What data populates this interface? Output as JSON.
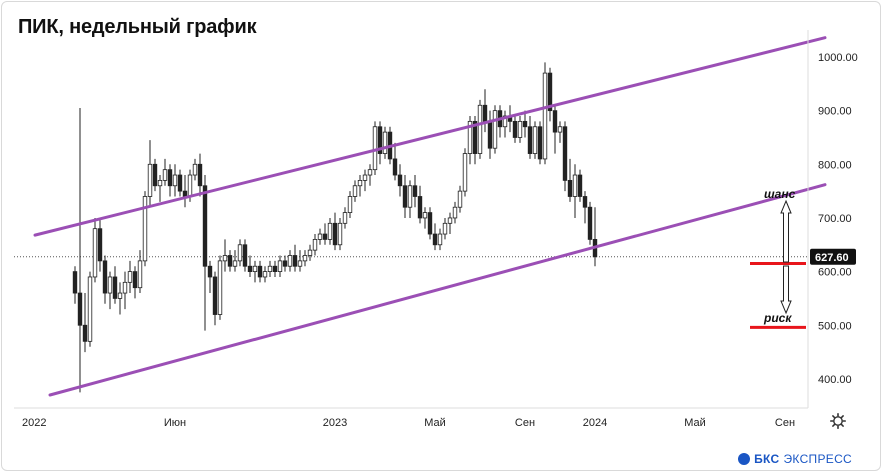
{
  "title": "ПИК, недельный график",
  "brand": {
    "name_bold": "БКС",
    "name": "ЭКСПРЕСС"
  },
  "icons": {
    "settings": "gear-icon",
    "brand": "bcs-logo-icon"
  },
  "colors": {
    "channel": "#9b4fb5",
    "candle": "#222222",
    "level": "#e8151b",
    "price_label_bg": "#111111"
  },
  "chart_data": {
    "type": "candlestick",
    "ylim": [
      350,
      1030
    ],
    "yticks": [
      "400.00",
      "500.00",
      "600.00",
      "700.00",
      "800.00",
      "900.00",
      "1000.00"
    ],
    "xticks": [
      "2022",
      "Июн",
      "2023",
      "Май",
      "Сен",
      "2024",
      "Май",
      "Сен"
    ],
    "xtick_weeks": [
      0,
      20,
      52,
      72,
      90,
      104,
      124,
      142
    ],
    "current_price": "627.60",
    "current_price_value": 627.6,
    "chance_label": "шанс",
    "risk_label": "риск",
    "levels": [
      615,
      496
    ],
    "channel_upper": [
      [
        -8,
        668
      ],
      [
        150,
        1036
      ]
    ],
    "channel_lower": [
      [
        -5,
        370
      ],
      [
        150,
        762
      ]
    ],
    "candles_ohlc": [
      [
        600,
        610,
        540,
        560
      ],
      [
        560,
        905,
        375,
        500
      ],
      [
        500,
        560,
        450,
        470
      ],
      [
        470,
        600,
        460,
        590
      ],
      [
        590,
        700,
        580,
        680
      ],
      [
        680,
        700,
        600,
        620
      ],
      [
        620,
        630,
        540,
        560
      ],
      [
        560,
        600,
        530,
        590
      ],
      [
        590,
        610,
        540,
        550
      ],
      [
        550,
        580,
        520,
        560
      ],
      [
        560,
        600,
        530,
        580
      ],
      [
        580,
        620,
        560,
        600
      ],
      [
        600,
        610,
        550,
        570
      ],
      [
        570,
        640,
        560,
        620
      ],
      [
        620,
        750,
        610,
        740
      ],
      [
        740,
        845,
        720,
        800
      ],
      [
        800,
        810,
        750,
        760
      ],
      [
        760,
        780,
        730,
        770
      ],
      [
        770,
        810,
        760,
        790
      ],
      [
        790,
        800,
        740,
        760
      ],
      [
        760,
        800,
        740,
        780
      ],
      [
        780,
        790,
        740,
        750
      ],
      [
        750,
        780,
        720,
        740
      ],
      [
        740,
        790,
        730,
        780
      ],
      [
        780,
        810,
        770,
        800
      ],
      [
        800,
        820,
        740,
        760
      ],
      [
        760,
        780,
        490,
        610
      ],
      [
        610,
        620,
        560,
        590
      ],
      [
        590,
        600,
        500,
        520
      ],
      [
        520,
        630,
        510,
        620
      ],
      [
        620,
        660,
        600,
        630
      ],
      [
        630,
        640,
        600,
        610
      ],
      [
        610,
        640,
        600,
        620
      ],
      [
        620,
        660,
        610,
        650
      ],
      [
        650,
        660,
        600,
        610
      ],
      [
        610,
        630,
        590,
        600
      ],
      [
        600,
        620,
        580,
        610
      ],
      [
        610,
        620,
        580,
        590
      ],
      [
        590,
        610,
        580,
        600
      ],
      [
        600,
        620,
        590,
        610
      ],
      [
        610,
        620,
        590,
        600
      ],
      [
        600,
        630,
        590,
        620
      ],
      [
        620,
        630,
        600,
        610
      ],
      [
        610,
        640,
        600,
        630
      ],
      [
        630,
        650,
        600,
        610
      ],
      [
        610,
        640,
        600,
        620
      ],
      [
        620,
        640,
        610,
        630
      ],
      [
        630,
        650,
        620,
        640
      ],
      [
        640,
        670,
        630,
        660
      ],
      [
        660,
        680,
        650,
        670
      ],
      [
        670,
        690,
        650,
        660
      ],
      [
        660,
        700,
        650,
        690
      ],
      [
        690,
        710,
        640,
        650
      ],
      [
        650,
        700,
        640,
        690
      ],
      [
        690,
        720,
        680,
        710
      ],
      [
        710,
        750,
        700,
        740
      ],
      [
        740,
        770,
        730,
        760
      ],
      [
        760,
        780,
        740,
        770
      ],
      [
        770,
        790,
        750,
        780
      ],
      [
        780,
        800,
        760,
        790
      ],
      [
        790,
        880,
        780,
        870
      ],
      [
        870,
        880,
        800,
        820
      ],
      [
        820,
        870,
        810,
        860
      ],
      [
        860,
        870,
        800,
        810
      ],
      [
        810,
        840,
        770,
        780
      ],
      [
        780,
        800,
        740,
        760
      ],
      [
        760,
        780,
        700,
        720
      ],
      [
        720,
        770,
        700,
        760
      ],
      [
        760,
        780,
        720,
        740
      ],
      [
        740,
        760,
        690,
        700
      ],
      [
        700,
        720,
        680,
        710
      ],
      [
        710,
        720,
        660,
        670
      ],
      [
        670,
        690,
        640,
        650
      ],
      [
        650,
        680,
        640,
        670
      ],
      [
        670,
        700,
        660,
        690
      ],
      [
        690,
        710,
        670,
        700
      ],
      [
        700,
        730,
        690,
        720
      ],
      [
        720,
        760,
        710,
        750
      ],
      [
        750,
        830,
        740,
        820
      ],
      [
        820,
        890,
        800,
        880
      ],
      [
        880,
        890,
        800,
        820
      ],
      [
        820,
        920,
        810,
        910
      ],
      [
        910,
        940,
        860,
        880
      ],
      [
        880,
        900,
        810,
        830
      ],
      [
        830,
        910,
        820,
        900
      ],
      [
        900,
        910,
        850,
        870
      ],
      [
        870,
        900,
        850,
        890
      ],
      [
        890,
        910,
        860,
        880
      ],
      [
        880,
        890,
        840,
        850
      ],
      [
        850,
        890,
        840,
        880
      ],
      [
        880,
        900,
        850,
        870
      ],
      [
        870,
        890,
        810,
        820
      ],
      [
        820,
        880,
        810,
        870
      ],
      [
        870,
        880,
        800,
        810
      ],
      [
        810,
        990,
        800,
        970
      ],
      [
        970,
        980,
        880,
        900
      ],
      [
        900,
        910,
        820,
        860
      ],
      [
        860,
        880,
        840,
        870
      ],
      [
        870,
        880,
        750,
        770
      ],
      [
        770,
        810,
        730,
        740
      ],
      [
        740,
        800,
        700,
        780
      ],
      [
        780,
        790,
        730,
        740
      ],
      [
        740,
        750,
        690,
        720
      ],
      [
        720,
        730,
        650,
        660
      ],
      [
        660,
        720,
        610,
        627.6
      ]
    ]
  }
}
